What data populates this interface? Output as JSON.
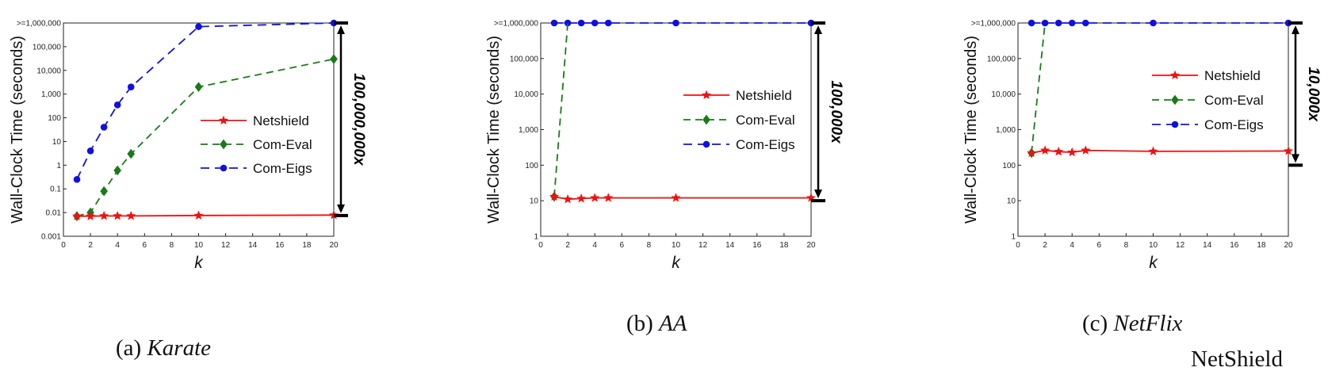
{
  "captions": [
    {
      "prefix": "(a) ",
      "name": "Karate"
    },
    {
      "prefix": "(b) ",
      "name": "AA"
    },
    {
      "prefix": "(c) ",
      "name": "NetFlix"
    }
  ],
  "footer_label": "NetShield",
  "colors": {
    "netshield": "#ee1111",
    "com_eval": "#1a7a1a",
    "com_eigs": "#1010e0"
  },
  "chart_data": [
    {
      "type": "line",
      "xlabel": "k",
      "ylabel": "Wall-Clock Time (seconds)",
      "xlim": [
        0,
        20
      ],
      "x_ticks": [
        0,
        2,
        4,
        6,
        8,
        10,
        12,
        14,
        16,
        18,
        20
      ],
      "y_scale": "log",
      "ylim": [
        0.001,
        1000000
      ],
      "y_ticks": [
        0.001,
        0.01,
        0.1,
        1,
        10,
        100,
        1000,
        10000,
        100000,
        1000000
      ],
      "y_tick_labels": [
        "0.001",
        "0.01",
        "0.1",
        "1",
        "10",
        "100",
        "1,000",
        "10,000",
        "100,000",
        ">=1,000,000"
      ],
      "legend": "center-right",
      "grid": false,
      "series": [
        {
          "name": "Netshield",
          "x": [
            1,
            2,
            3,
            4,
            5,
            10,
            20
          ],
          "y": [
            0.007,
            0.007,
            0.0072,
            0.0072,
            0.0072,
            0.0075,
            0.0078
          ]
        },
        {
          "name": "Com-Eval",
          "x": [
            1,
            2,
            3,
            4,
            5,
            10,
            20
          ],
          "y": [
            0.007,
            0.01,
            0.08,
            0.6,
            3,
            2000,
            30000
          ]
        },
        {
          "name": "Com-Eigs",
          "x": [
            1,
            2,
            3,
            4,
            5,
            10,
            20
          ],
          "y": [
            0.25,
            4,
            40,
            350,
            2000,
            700000,
            1000000
          ]
        }
      ],
      "annotation": {
        "text": "100,000,000x",
        "y_from": 0.0075,
        "y_to": 1000000
      }
    },
    {
      "type": "line",
      "xlabel": "k",
      "ylabel": "Wall-Clock Time (seconds)",
      "xlim": [
        0,
        20
      ],
      "x_ticks": [
        0,
        2,
        4,
        6,
        8,
        10,
        12,
        14,
        16,
        18,
        20
      ],
      "y_scale": "log",
      "ylim": [
        1,
        1000000
      ],
      "y_ticks": [
        1,
        10,
        100,
        1000,
        10000,
        100000,
        1000000
      ],
      "y_tick_labels": [
        "1",
        "10",
        "100",
        "1,000",
        "10,000",
        "100,000",
        ">=1,000,000"
      ],
      "legend": "center-right",
      "grid": false,
      "series": [
        {
          "name": "Netshield",
          "x": [
            1,
            2,
            3,
            4,
            5,
            10,
            20
          ],
          "y": [
            13,
            11,
            11.5,
            12,
            12,
            12,
            12
          ]
        },
        {
          "name": "Com-Eval",
          "x": [
            1,
            2
          ],
          "y": [
            13,
            1000000
          ]
        },
        {
          "name": "Com-Eigs",
          "x": [
            1,
            2,
            3,
            4,
            5,
            10,
            20
          ],
          "y": [
            1000000,
            1000000,
            1000000,
            1000000,
            1000000,
            1000000,
            1000000
          ]
        }
      ],
      "annotation": {
        "text": "100,000x",
        "y_from": 10,
        "y_to": 1000000
      }
    },
    {
      "type": "line",
      "xlabel": "k",
      "ylabel": "Wall-Clock Time (seconds)",
      "xlim": [
        0,
        20
      ],
      "x_ticks": [
        0,
        2,
        4,
        6,
        8,
        10,
        12,
        14,
        16,
        18,
        20
      ],
      "y_scale": "log",
      "ylim": [
        1,
        1000000
      ],
      "y_ticks": [
        1,
        10,
        100,
        1000,
        10000,
        100000,
        1000000
      ],
      "y_tick_labels": [
        "1",
        "10",
        "100",
        "1,000",
        "10,000",
        "100,000",
        ">=1,000,000"
      ],
      "legend": "center-right",
      "grid": false,
      "series": [
        {
          "name": "Netshield",
          "x": [
            1,
            2,
            3,
            4,
            5,
            10,
            20
          ],
          "y": [
            220,
            260,
            240,
            230,
            260,
            245,
            250
          ]
        },
        {
          "name": "Com-Eval",
          "x": [
            1,
            2
          ],
          "y": [
            220,
            1000000
          ]
        },
        {
          "name": "Com-Eigs",
          "x": [
            1,
            2,
            3,
            4,
            5,
            10,
            20
          ],
          "y": [
            1000000,
            1000000,
            1000000,
            1000000,
            1000000,
            1000000,
            1000000
          ]
        }
      ],
      "annotation": {
        "text": "10,000x",
        "y_from": 100,
        "y_to": 1000000
      }
    }
  ]
}
